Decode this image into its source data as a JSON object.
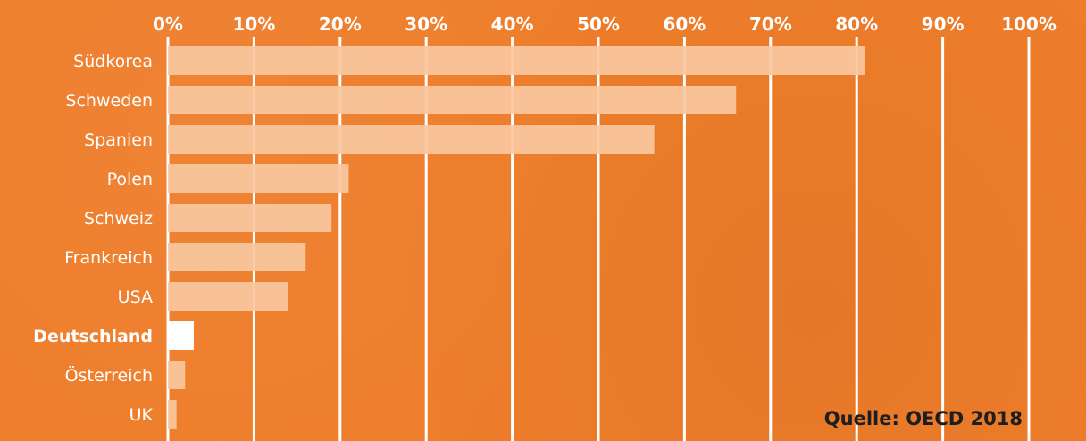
{
  "chart_data": {
    "type": "bar",
    "orientation": "horizontal",
    "categories": [
      "Südkorea",
      "Schweden",
      "Spanien",
      "Polen",
      "Schweiz",
      "Frankreich",
      "USA",
      "Deutschland",
      "Österreich",
      "UK"
    ],
    "values": [
      81,
      66,
      56.5,
      21,
      19,
      16,
      14,
      3,
      2,
      1
    ],
    "highlight_category": "Deutschland",
    "xlim": [
      0,
      100
    ],
    "x_tick_labels": [
      "0%",
      "10%",
      "20%",
      "30%",
      "40%",
      "50%",
      "60%",
      "70%",
      "80%",
      "90%",
      "100%"
    ],
    "x_axis_position": "top",
    "grid": true,
    "source": "Quelle: OECD 2018"
  },
  "colors": {
    "background": "#ee7d2a",
    "bar": "#f9c8a0",
    "highlight_bar": "#ffffff",
    "grid": "#ffffff",
    "text": "#ffffff",
    "source_text": "#1e1e1e"
  }
}
